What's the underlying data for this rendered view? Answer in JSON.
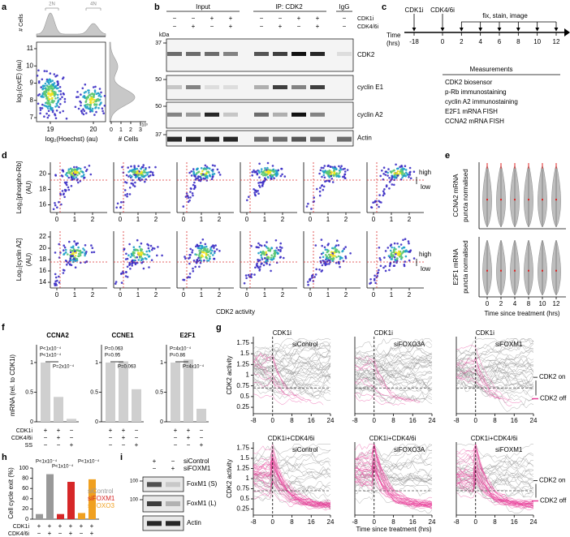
{
  "a": {
    "label": "a",
    "top_y": "# Cells",
    "peaks": [
      "2N",
      "4N"
    ],
    "ylabel": "log₂(cycE) (au)",
    "yticks": [
      7,
      8,
      9,
      10,
      11
    ],
    "xlabel": "log₂(Hoechst) (au)",
    "xticks": [
      19,
      20
    ],
    "hist_ticks": [
      0,
      1,
      2,
      3
    ],
    "hist_exp": "x10³",
    "hist_label": "# Cells"
  },
  "b": {
    "label": "b",
    "groups": [
      "Input",
      "IP: CDK2",
      "IgG"
    ],
    "rows": [
      {
        "name": "CDK1i",
        "signs": [
          "−",
          "−",
          "+",
          "+",
          "−",
          "−",
          "+",
          "+",
          "−"
        ]
      },
      {
        "name": "CDK4/6i",
        "signs": [
          "−",
          "+",
          "−",
          "+",
          "−",
          "+",
          "−",
          "+",
          "−"
        ]
      }
    ],
    "kda": "kDa",
    "blots": [
      {
        "name": "CDK2",
        "markers": [
          37
        ]
      },
      {
        "name": "cyclin E1",
        "markers": [
          50
        ]
      },
      {
        "name": "cyclin A2",
        "markers": [
          50
        ]
      },
      {
        "name": "Actin",
        "markers": [
          37
        ]
      }
    ]
  },
  "c": {
    "label": "c",
    "drugs": [
      "CDK1i",
      "CDK4/6i"
    ],
    "step": "fix, stain, image",
    "axis": [
      "Time",
      "(hrs)"
    ],
    "ticks": [
      -18,
      0,
      2,
      4,
      6,
      8,
      10,
      12
    ],
    "measurements_title": "Measurements",
    "measurements": [
      "CDK2 biosensor",
      "p-Rb immunostaining",
      "cyclin A2 immunostaining",
      "E2F1 mRNA FISH",
      "CCNA2 mRNA FISH"
    ]
  },
  "d": {
    "label": "d",
    "rows": [
      {
        "ylabel": "Log₂[phospho-Rb]",
        "yunit": "(AU)",
        "yticks": [
          16,
          18,
          20
        ],
        "high": "high",
        "low": "low"
      },
      {
        "ylabel": "Log₂[cyclin A2]",
        "yunit": "(AU)",
        "yticks": [
          14,
          16,
          18,
          20,
          22
        ],
        "high": "high",
        "low": "low"
      }
    ],
    "xticks": [
      0,
      1,
      2
    ],
    "xlabel": "CDK2 activity"
  },
  "e": {
    "label": "e",
    "plots": [
      {
        "ylabel": [
          "CCNA2 mRNA",
          "puncta normalised"
        ]
      },
      {
        "ylabel": [
          "E2F1 mRNA",
          "puncta normalised"
        ]
      }
    ],
    "xticks": [
      0,
      2,
      4,
      8,
      10,
      12
    ],
    "xlabel": "Time since treatment (hrs)"
  },
  "f": {
    "label": "f",
    "ylabel": "mRNA (rel. to CDK1i)",
    "ylim": [
      0,
      1.3
    ],
    "yticks": [
      0,
      0.5,
      1
    ],
    "color": "#cfcfcf",
    "charts": [
      {
        "title": "CCNA2",
        "values": [
          1,
          0.42,
          0.05
        ],
        "pvalues": [
          "P<1x10⁻⁴",
          "P<1x10⁻⁴",
          "P=2x10⁻⁴"
        ]
      },
      {
        "title": "CCNE1",
        "values": [
          1,
          1.02,
          0.55
        ],
        "pvalues": [
          "P=0.063",
          "P=0.95",
          "P=0.063"
        ]
      },
      {
        "title": "E2F1",
        "values": [
          1,
          1.05,
          0.22
        ],
        "pvalues": [
          "P=4x10⁻⁴",
          "P=0.86",
          "P=4x10⁻⁴"
        ]
      }
    ],
    "rows": [
      {
        "name": "CDK1i",
        "signs": [
          "+",
          "+",
          "−"
        ]
      },
      {
        "name": "CDK4/6i",
        "signs": [
          "−",
          "+",
          "−"
        ]
      },
      {
        "name": "SS",
        "signs": [
          "−",
          "−",
          "+"
        ]
      }
    ]
  },
  "g": {
    "label": "g",
    "ylabel": "CDK2 activity",
    "ylim": [
      0.1,
      1.9
    ],
    "yticks": [
      0.25,
      0.5,
      0.75,
      1,
      1.25,
      1.5,
      1.75
    ],
    "xlim": [
      -8,
      24
    ],
    "xticks": [
      -8,
      0,
      8,
      16,
      24
    ],
    "drugs": [
      "CDK1i",
      "CDK1i+CDK4/6i"
    ],
    "conditions": [
      "siControl",
      "siFOXO3A",
      "siFOXM1"
    ],
    "on": "CDK2 on",
    "off": "CDK2 off",
    "xlabel": "Time since treatment (hrs)"
  },
  "h": {
    "label": "h",
    "ylabel": "Cell cycle exit (%)",
    "ylim": [
      0,
      100
    ],
    "yticks": [
      0,
      20,
      40,
      60,
      80,
      100
    ],
    "series": [
      {
        "name": "siControl",
        "color": "#999999",
        "values": [
          10,
          88
        ]
      },
      {
        "name": "siFOXM1",
        "color": "#d62728",
        "values": [
          10,
          73
        ]
      },
      {
        "name": "siFOXO3",
        "color": "#f0a020",
        "values": [
          12,
          78
        ]
      }
    ],
    "pvalues": [
      "P<1x10⁻⁴",
      "P<1x10⁻⁴",
      "P<1x10⁻⁴"
    ],
    "rows": [
      {
        "name": "CDK1i",
        "signs": [
          "+",
          "+",
          "+",
          "+",
          "+",
          "+"
        ]
      },
      {
        "name": "CDK4/6i",
        "signs": [
          "−",
          "+",
          "−",
          "+",
          "−",
          "+"
        ]
      }
    ]
  },
  "i": {
    "label": "i",
    "rows": [
      {
        "name": "siControl",
        "signs": [
          "+",
          "−"
        ]
      },
      {
        "name": "siFOXM1",
        "signs": [
          "−",
          "+"
        ]
      }
    ],
    "blots": [
      {
        "name": "FoxM1 (S)",
        "markers": [
          100
        ]
      },
      {
        "name": "FoxM1 (L)",
        "markers": [
          100
        ]
      },
      {
        "name": "Actin",
        "markers": []
      }
    ]
  }
}
